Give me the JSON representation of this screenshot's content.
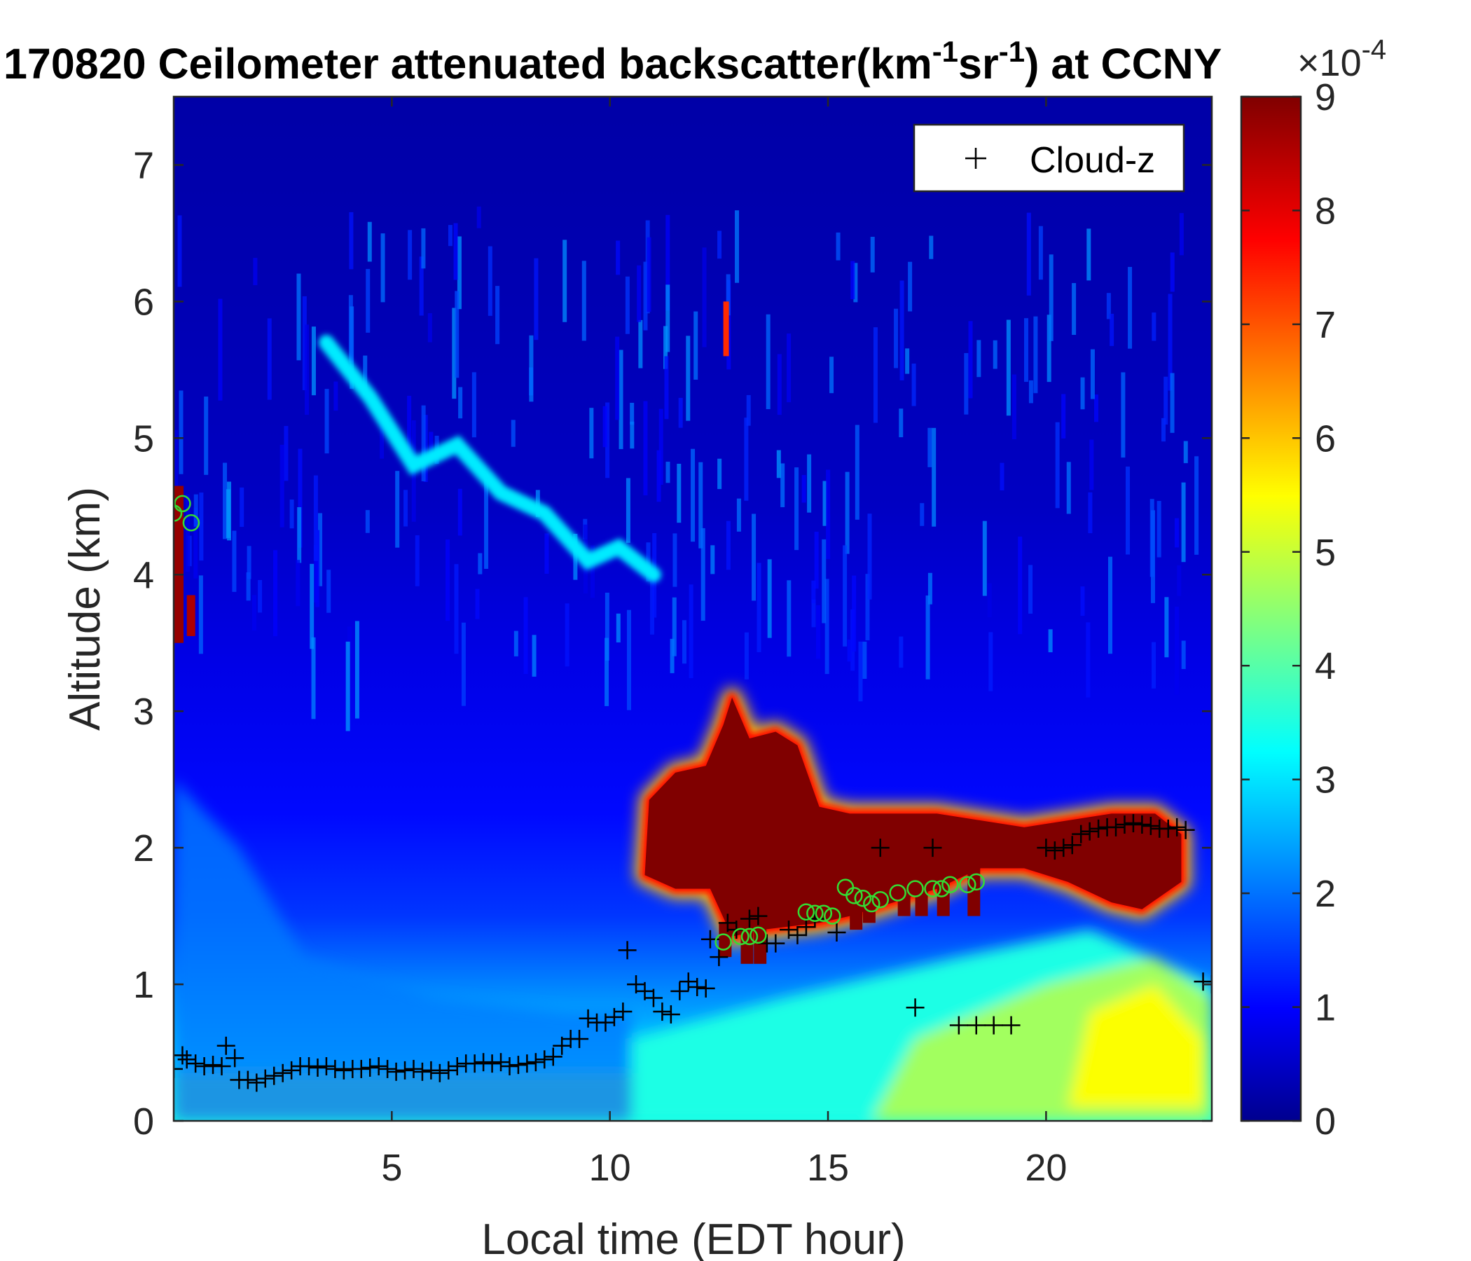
{
  "chart_data": {
    "type": "heatmap",
    "title": "170820 Ceilometer attenuated backscatter(km",
    "title_sup1": "-1",
    "title_mid": "sr",
    "title_sup2": "-1",
    "title_end": ") at CCNY",
    "xlabel": "Local time (EDT hour)",
    "ylabel": "Altitude (km)",
    "xlim": [
      0,
      23.8
    ],
    "ylim": [
      0,
      7.5
    ],
    "xticks": [
      5,
      10,
      15,
      20
    ],
    "yticks": [
      0,
      1,
      2,
      3,
      4,
      5,
      6,
      7
    ],
    "colorbar": {
      "min": 0,
      "max": 9,
      "ticks": [
        0,
        1,
        2,
        3,
        4,
        5,
        6,
        7,
        8,
        9
      ],
      "exponent_base": "×10",
      "exponent_power": "-4",
      "colormap": "jet"
    },
    "legend": {
      "label": "Cloud-z",
      "marker": "+",
      "location": "top-right"
    },
    "cloud_z": [
      [
        0.0,
        0.38
      ],
      [
        0.2,
        0.48
      ],
      [
        0.3,
        0.45
      ],
      [
        0.5,
        0.42
      ],
      [
        0.7,
        0.4
      ],
      [
        0.9,
        0.41
      ],
      [
        1.1,
        0.4
      ],
      [
        1.2,
        0.55
      ],
      [
        1.4,
        0.46
      ],
      [
        1.5,
        0.3
      ],
      [
        1.7,
        0.3
      ],
      [
        1.9,
        0.28
      ],
      [
        2.1,
        0.31
      ],
      [
        2.3,
        0.33
      ],
      [
        2.5,
        0.35
      ],
      [
        2.7,
        0.37
      ],
      [
        2.9,
        0.4
      ],
      [
        3.1,
        0.4
      ],
      [
        3.3,
        0.39
      ],
      [
        3.5,
        0.4
      ],
      [
        3.7,
        0.38
      ],
      [
        3.9,
        0.37
      ],
      [
        4.1,
        0.38
      ],
      [
        4.3,
        0.38
      ],
      [
        4.5,
        0.39
      ],
      [
        4.7,
        0.4
      ],
      [
        4.9,
        0.38
      ],
      [
        5.1,
        0.36
      ],
      [
        5.3,
        0.37
      ],
      [
        5.5,
        0.38
      ],
      [
        5.7,
        0.36
      ],
      [
        5.9,
        0.37
      ],
      [
        6.1,
        0.35
      ],
      [
        6.3,
        0.37
      ],
      [
        6.5,
        0.4
      ],
      [
        6.7,
        0.42
      ],
      [
        6.9,
        0.42
      ],
      [
        7.1,
        0.43
      ],
      [
        7.3,
        0.42
      ],
      [
        7.5,
        0.43
      ],
      [
        7.7,
        0.4
      ],
      [
        7.9,
        0.41
      ],
      [
        8.1,
        0.42
      ],
      [
        8.3,
        0.43
      ],
      [
        8.5,
        0.45
      ],
      [
        8.7,
        0.47
      ],
      [
        8.9,
        0.55
      ],
      [
        9.1,
        0.6
      ],
      [
        9.3,
        0.6
      ],
      [
        9.5,
        0.75
      ],
      [
        9.7,
        0.72
      ],
      [
        9.9,
        0.72
      ],
      [
        10.1,
        0.76
      ],
      [
        10.3,
        0.8
      ],
      [
        10.4,
        1.25
      ],
      [
        10.6,
        1.0
      ],
      [
        10.8,
        0.95
      ],
      [
        11.0,
        0.9
      ],
      [
        11.2,
        0.8
      ],
      [
        11.4,
        0.78
      ],
      [
        11.6,
        0.95
      ],
      [
        11.8,
        1.02
      ],
      [
        12.0,
        0.98
      ],
      [
        12.2,
        0.97
      ],
      [
        12.3,
        1.33
      ],
      [
        12.5,
        1.2
      ],
      [
        12.7,
        1.45
      ],
      [
        12.9,
        1.4
      ],
      [
        13.2,
        1.48
      ],
      [
        13.4,
        1.5
      ],
      [
        13.6,
        1.3
      ],
      [
        13.8,
        1.3
      ],
      [
        14.1,
        1.4
      ],
      [
        14.3,
        1.36
      ],
      [
        14.5,
        1.42
      ],
      [
        14.7,
        1.48
      ],
      [
        15.2,
        1.38
      ],
      [
        16.2,
        2.0
      ],
      [
        17.0,
        0.83
      ],
      [
        17.4,
        2.0
      ],
      [
        18.0,
        0.7
      ],
      [
        18.4,
        0.7
      ],
      [
        18.8,
        0.7
      ],
      [
        19.2,
        0.7
      ],
      [
        20.0,
        2.0
      ],
      [
        20.2,
        1.98
      ],
      [
        20.4,
        2.0
      ],
      [
        20.6,
        2.02
      ],
      [
        20.8,
        2.1
      ],
      [
        21.0,
        2.12
      ],
      [
        21.2,
        2.14
      ],
      [
        21.4,
        2.15
      ],
      [
        21.6,
        2.15
      ],
      [
        21.8,
        2.17
      ],
      [
        22.0,
        2.18
      ],
      [
        22.2,
        2.17
      ],
      [
        22.4,
        2.16
      ],
      [
        22.6,
        2.14
      ],
      [
        22.8,
        2.14
      ],
      [
        23.0,
        2.15
      ],
      [
        23.2,
        2.13
      ],
      [
        23.6,
        1.02
      ],
      [
        23.8,
        1.0
      ]
    ],
    "pbl_circles": [
      [
        0.0,
        4.45
      ],
      [
        0.2,
        4.52
      ],
      [
        0.4,
        4.38
      ],
      [
        12.6,
        1.31
      ],
      [
        13.0,
        1.35
      ],
      [
        13.2,
        1.35
      ],
      [
        13.4,
        1.36
      ],
      [
        14.5,
        1.53
      ],
      [
        14.7,
        1.52
      ],
      [
        14.9,
        1.52
      ],
      [
        15.1,
        1.5
      ],
      [
        15.4,
        1.71
      ],
      [
        15.6,
        1.65
      ],
      [
        15.8,
        1.63
      ],
      [
        16.0,
        1.59
      ],
      [
        16.2,
        1.62
      ],
      [
        16.6,
        1.67
      ],
      [
        17.0,
        1.7
      ],
      [
        17.4,
        1.7
      ],
      [
        17.6,
        1.7
      ],
      [
        17.8,
        1.73
      ],
      [
        18.2,
        1.73
      ],
      [
        18.4,
        1.75
      ]
    ]
  }
}
